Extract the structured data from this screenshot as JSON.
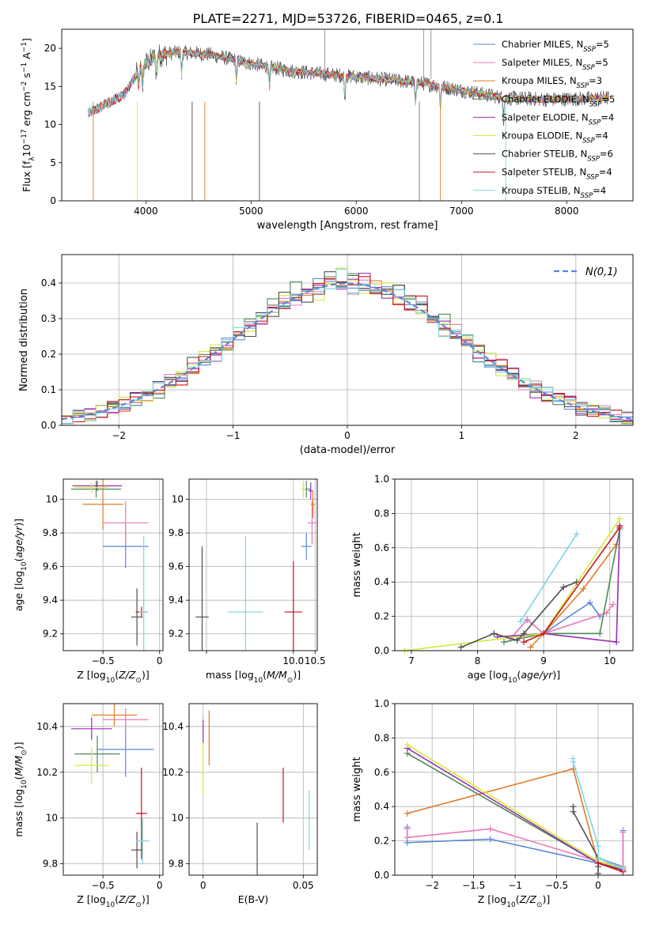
{
  "figure": {
    "title": "PLATE=2271, MJD=53726, FIBERID=0465, z=0.1"
  },
  "models": [
    {
      "name": "Chabrier MILES, N$_{SSP}$=5",
      "label_main": "Chabrier MILES, N",
      "label_sub": "SSP",
      "label_tail": "=5",
      "color": "#5b87d6"
    },
    {
      "name": "Salpeter MILES",
      "label_main": "Salpeter MILES, N",
      "label_sub": "SSP",
      "label_tail": "=5",
      "color": "#e87ab8"
    },
    {
      "name": "Kroupa MILES",
      "label_main": "Kroupa MILES, N",
      "label_sub": "SSP",
      "label_tail": "=3",
      "color": "#e07b28"
    },
    {
      "name": "Chabrier ELODIE",
      "label_main": "Chabrier ELODIE, N",
      "label_sub": "SSP",
      "label_tail": "=5",
      "color": "#4d8a55"
    },
    {
      "name": "Salpeter ELODIE",
      "label_main": "Salpeter ELODIE, N",
      "label_sub": "SSP",
      "label_tail": "=4",
      "color": "#9a2fb0"
    },
    {
      "name": "Kroupa ELODIE",
      "label_main": "Kroupa ELODIE, N",
      "label_sub": "SSP",
      "label_tail": "=4",
      "color": "#d4ea3a"
    },
    {
      "name": "Chabrier STELIB",
      "label_main": "Chabrier STELIB, N",
      "label_sub": "SSP",
      "label_tail": "=6",
      "color": "#505050"
    },
    {
      "name": "Salpeter STELIB",
      "label_main": "Salpeter STELIB, N",
      "label_sub": "SSP",
      "label_tail": "=4",
      "color": "#c8151b"
    },
    {
      "name": "Kroupa STELIB",
      "label_main": "Kroupa STELIB, N",
      "label_sub": "SSP",
      "label_tail": "=4",
      "color": "#7ad8de"
    }
  ],
  "chart_data": [
    {
      "id": "spectrum",
      "type": "line",
      "xlabel": "wavelength [Angstrom, rest frame]",
      "ylabel": "Flux [f_λ 10^-17 erg cm^-2 s^-1 A^-1]",
      "xlim": [
        3200,
        8630
      ],
      "ylim": [
        0,
        22.5
      ],
      "xticks": [
        4000,
        5000,
        6000,
        7000,
        8000
      ],
      "yticks": [
        0,
        5,
        10,
        15,
        20
      ],
      "legend": "top-right",
      "spectrum_profile": {
        "x": [
          3450,
          3600,
          3800,
          3950,
          4100,
          4300,
          4600,
          5000,
          5400,
          5800,
          6200,
          6600,
          7000,
          7400,
          7800,
          8200,
          8400
        ],
        "y": [
          11.5,
          12.5,
          14.0,
          17.5,
          19.0,
          19.5,
          19.2,
          18.0,
          17.0,
          16.5,
          16.0,
          15.5,
          14.5,
          13.5,
          13.3,
          13.4,
          13.5
        ]
      },
      "absorption_lines": [
        3934,
        3969,
        4101,
        4340,
        4861,
        5175,
        5892,
        6563,
        6800,
        7400
      ]
    },
    {
      "id": "residuals",
      "type": "histogram",
      "xlabel": "(data-model)/error",
      "ylabel": "Normed distribution",
      "xlim": [
        -2.5,
        2.5
      ],
      "ylim": [
        0,
        0.48
      ],
      "xticks": [
        -2,
        -1,
        0,
        1,
        2
      ],
      "yticks": [
        0.0,
        0.1,
        0.2,
        0.3,
        0.4
      ],
      "grid": true,
      "legend": "top-right",
      "reference": "N(0,1)"
    },
    {
      "id": "age_vs_Z",
      "type": "scatter",
      "xlabel": "Z [log10(Z/Z⊙)]",
      "ylabel": "age [log10(age/yr)]",
      "xlim": [
        -0.85,
        0.03
      ],
      "ylim": [
        9.1,
        10.12
      ],
      "xticks": [
        -0.5,
        0.0
      ],
      "yticks": [
        9.2,
        9.4,
        9.6,
        9.8,
        10.0
      ],
      "grid": true,
      "points": [
        {
          "x": -0.3,
          "y": 9.72,
          "xerr": 0.2,
          "yerr": 0.13,
          "model": 0
        },
        {
          "x": -0.3,
          "y": 9.86,
          "xerr": 0.2,
          "yerr": 0.13,
          "model": 1
        },
        {
          "x": -0.5,
          "y": 9.97,
          "xerr": 0.18,
          "yerr": 0.15,
          "model": 2
        },
        {
          "x": -0.56,
          "y": 10.06,
          "xerr": 0.22,
          "yerr": 0.05,
          "model": 3
        },
        {
          "x": -0.55,
          "y": 10.08,
          "xerr": 0.22,
          "yerr": 0.03,
          "model": 4
        },
        {
          "x": -0.6,
          "y": 10.07,
          "xerr": 0.15,
          "yerr": 0.03,
          "model": 5
        },
        {
          "x": -0.2,
          "y": 9.3,
          "xerr": 0.05,
          "yerr": 0.17,
          "model": 6
        },
        {
          "x": -0.16,
          "y": 9.33,
          "xerr": 0.05,
          "yerr": 0.03,
          "model": 7
        },
        {
          "x": -0.14,
          "y": 9.33,
          "xerr": 0.04,
          "yerr": 0.45,
          "model": 8
        }
      ]
    },
    {
      "id": "age_vs_mass",
      "type": "scatter",
      "xlabel": "mass [log10(M/M⊙)]",
      "ylabel": "",
      "xlim": [
        7.6,
        10.55
      ],
      "ylim": [
        9.1,
        10.12
      ],
      "xticks": [
        8.0,
        10.0,
        10.5
      ],
      "xticklabels": [
        "",
        "10.0",
        "10.5"
      ],
      "yticks": [
        9.2,
        9.4,
        9.6,
        9.8,
        10.0
      ],
      "grid": true,
      "points": [
        {
          "x": 10.3,
          "y": 9.72,
          "xerr": 0.12,
          "yerr": 0.08,
          "model": 0
        },
        {
          "x": 10.43,
          "y": 9.86,
          "xerr": 0.1,
          "yerr": 0.13,
          "model": 1
        },
        {
          "x": 10.45,
          "y": 9.97,
          "xerr": 0.05,
          "yerr": 0.08,
          "model": 2
        },
        {
          "x": 10.3,
          "y": 10.06,
          "xerr": 0.1,
          "yerr": 0.05,
          "model": 3
        },
        {
          "x": 10.4,
          "y": 10.05,
          "xerr": 0.05,
          "yerr": 0.05,
          "model": 4
        },
        {
          "x": 10.23,
          "y": 10.06,
          "xerr": 0.05,
          "yerr": 0.05,
          "model": 5
        },
        {
          "x": 7.9,
          "y": 9.3,
          "xerr": 0.15,
          "yerr": 0.42,
          "model": 6
        },
        {
          "x": 10.0,
          "y": 9.33,
          "xerr": 0.2,
          "yerr": 0.3,
          "model": 7
        },
        {
          "x": 8.9,
          "y": 9.33,
          "xerr": 0.4,
          "yerr": 0.45,
          "model": 8
        }
      ]
    },
    {
      "id": "massweight_vs_age",
      "type": "line",
      "xlabel": "age [log10(age/yr)]",
      "ylabel": "mass weight",
      "xlim": [
        6.75,
        10.35
      ],
      "ylim": [
        0,
        1.0
      ],
      "xticks": [
        7,
        8,
        9,
        10
      ],
      "yticks": [
        0.0,
        0.2,
        0.4,
        0.6,
        0.8,
        1.0
      ],
      "grid": true,
      "series": [
        {
          "model": 0,
          "x": [
            8.5,
            8.75,
            9.0,
            9.7,
            9.85
          ],
          "y": [
            0.07,
            0.18,
            0.1,
            0.28,
            0.2
          ]
        },
        {
          "model": 1,
          "x": [
            8.5,
            8.75,
            9.0,
            9.95,
            10.05
          ],
          "y": [
            0.07,
            0.18,
            0.1,
            0.22,
            0.27
          ]
        },
        {
          "model": 2,
          "x": [
            8.8,
            9.0,
            9.6,
            10.1
          ],
          "y": [
            0.02,
            0.1,
            0.36,
            0.62
          ]
        },
        {
          "model": 3,
          "x": [
            8.4,
            9.0,
            9.85,
            10.15
          ],
          "y": [
            0.05,
            0.1,
            0.1,
            0.71
          ]
        },
        {
          "model": 4,
          "x": [
            8.3,
            9.0,
            10.1,
            10.15
          ],
          "y": [
            0.08,
            0.1,
            0.05,
            0.73
          ]
        },
        {
          "model": 5,
          "x": [
            6.9,
            9.0,
            10.15
          ],
          "y": [
            0.0,
            0.1,
            0.77
          ]
        },
        {
          "model": 6,
          "x": [
            7.75,
            8.25,
            8.6,
            8.7,
            9.3,
            9.5
          ],
          "y": [
            0.02,
            0.1,
            0.06,
            0.1,
            0.37,
            0.4
          ]
        },
        {
          "model": 7,
          "x": [
            8.7,
            9.0,
            10.15
          ],
          "y": [
            0.05,
            0.1,
            0.72
          ]
        },
        {
          "model": 8,
          "x": [
            8.65,
            9.5
          ],
          "y": [
            0.17,
            0.68
          ]
        }
      ]
    },
    {
      "id": "mass_vs_Z",
      "type": "scatter",
      "xlabel": "Z [log10(Z/Z⊙)]",
      "ylabel": "mass [log10(M/M⊙)]",
      "xlim": [
        -0.85,
        0.03
      ],
      "ylim": [
        9.75,
        10.5
      ],
      "xticks": [
        -0.5,
        0.0
      ],
      "yticks": [
        9.8,
        10.0,
        10.2,
        10.4
      ],
      "grid": true,
      "points": [
        {
          "x": -0.3,
          "y": 10.3,
          "xerr": 0.25,
          "yerr": 0.12,
          "model": 0
        },
        {
          "x": -0.3,
          "y": 10.43,
          "xerr": 0.2,
          "yerr": 0.05,
          "model": 1
        },
        {
          "x": -0.4,
          "y": 10.45,
          "xerr": 0.2,
          "yerr": 0.05,
          "model": 2
        },
        {
          "x": -0.55,
          "y": 10.28,
          "xerr": 0.2,
          "yerr": 0.08,
          "model": 3
        },
        {
          "x": -0.6,
          "y": 10.39,
          "xerr": 0.18,
          "yerr": 0.05,
          "model": 4
        },
        {
          "x": -0.6,
          "y": 10.23,
          "xerr": 0.15,
          "yerr": 0.08,
          "model": 5
        },
        {
          "x": -0.2,
          "y": 9.86,
          "xerr": 0.05,
          "yerr": 0.08,
          "model": 6
        },
        {
          "x": -0.16,
          "y": 10.02,
          "xerr": 0.05,
          "yerr": 0.2,
          "model": 7
        },
        {
          "x": -0.15,
          "y": 9.9,
          "xerr": 0.06,
          "yerr": 0.1,
          "model": 8
        }
      ]
    },
    {
      "id": "mass_vs_ebv",
      "type": "scatter",
      "xlabel": "E(B-V)",
      "ylabel": "",
      "xlim": [
        -0.007,
        0.057
      ],
      "ylim": [
        9.75,
        10.5
      ],
      "xticks": [
        0.0,
        0.05
      ],
      "yticks": [
        9.8,
        10.0,
        10.2,
        10.4
      ],
      "grid": true,
      "points": [
        {
          "x": 0.0,
          "y": 10.25,
          "xerr": 0,
          "yerr": 0.15,
          "model": 5
        },
        {
          "x": 0.0,
          "y": 10.38,
          "xerr": 0,
          "yerr": 0.05,
          "model": 4
        },
        {
          "x": 0.003,
          "y": 10.35,
          "xerr": 0,
          "yerr": 0.12,
          "model": 2
        },
        {
          "x": 0.027,
          "y": 9.86,
          "xerr": 0,
          "yerr": 0.12,
          "model": 6
        },
        {
          "x": 0.04,
          "y": 10.1,
          "xerr": 0,
          "yerr": 0.12,
          "model": 7
        },
        {
          "x": 0.053,
          "y": 9.99,
          "xerr": 0,
          "yerr": 0.13,
          "model": 8
        }
      ]
    },
    {
      "id": "massweight_vs_Z",
      "type": "line",
      "xlabel": "Z [log10(Z/Z⊙)]",
      "ylabel": "mass weight",
      "xlim": [
        -2.45,
        0.42
      ],
      "ylim": [
        0,
        1.0
      ],
      "xticks": [
        -2.0,
        -1.5,
        -1.0,
        -0.5,
        0.0
      ],
      "yticks": [
        0.0,
        0.2,
        0.4,
        0.6,
        0.8,
        1.0
      ],
      "grid": true,
      "series": [
        {
          "model": 0,
          "x": [
            -2.3,
            -2.3,
            -1.3,
            0.0,
            0.0,
            0.3,
            0.3
          ],
          "y": [
            0.28,
            0.19,
            0.21,
            0.07,
            0.1,
            0.05,
            0.26
          ]
        },
        {
          "model": 1,
          "x": [
            -2.3,
            -2.3,
            -1.3,
            0.0,
            0.3,
            0.3
          ],
          "y": [
            0.27,
            0.22,
            0.27,
            0.08,
            0.05,
            0.25
          ]
        },
        {
          "model": 2,
          "x": [
            -2.3,
            -0.3,
            0.0,
            0.3
          ],
          "y": [
            0.36,
            0.62,
            0.07,
            0.03
          ]
        },
        {
          "model": 3,
          "x": [
            -2.3,
            0.0,
            0.3
          ],
          "y": [
            0.71,
            0.07,
            0.04
          ]
        },
        {
          "model": 4,
          "x": [
            -2.3,
            0.0,
            0.3
          ],
          "y": [
            0.74,
            0.07,
            0.03
          ]
        },
        {
          "model": 5,
          "x": [
            -2.3,
            0.0,
            0.3
          ],
          "y": [
            0.76,
            0.08,
            0.04
          ]
        },
        {
          "model": 6,
          "x": [
            -0.3,
            -0.3,
            0.0,
            0.0,
            0.0
          ],
          "y": [
            0.4,
            0.37,
            0.1,
            0.05,
            0.01
          ]
        },
        {
          "model": 7,
          "x": [
            0.0,
            0.3
          ],
          "y": [
            0.07,
            0.02
          ]
        },
        {
          "model": 8,
          "x": [
            -0.3,
            -0.3,
            0.0,
            0.0,
            0.3
          ],
          "y": [
            0.68,
            0.66,
            0.17,
            0.1,
            0.04
          ]
        }
      ]
    }
  ]
}
